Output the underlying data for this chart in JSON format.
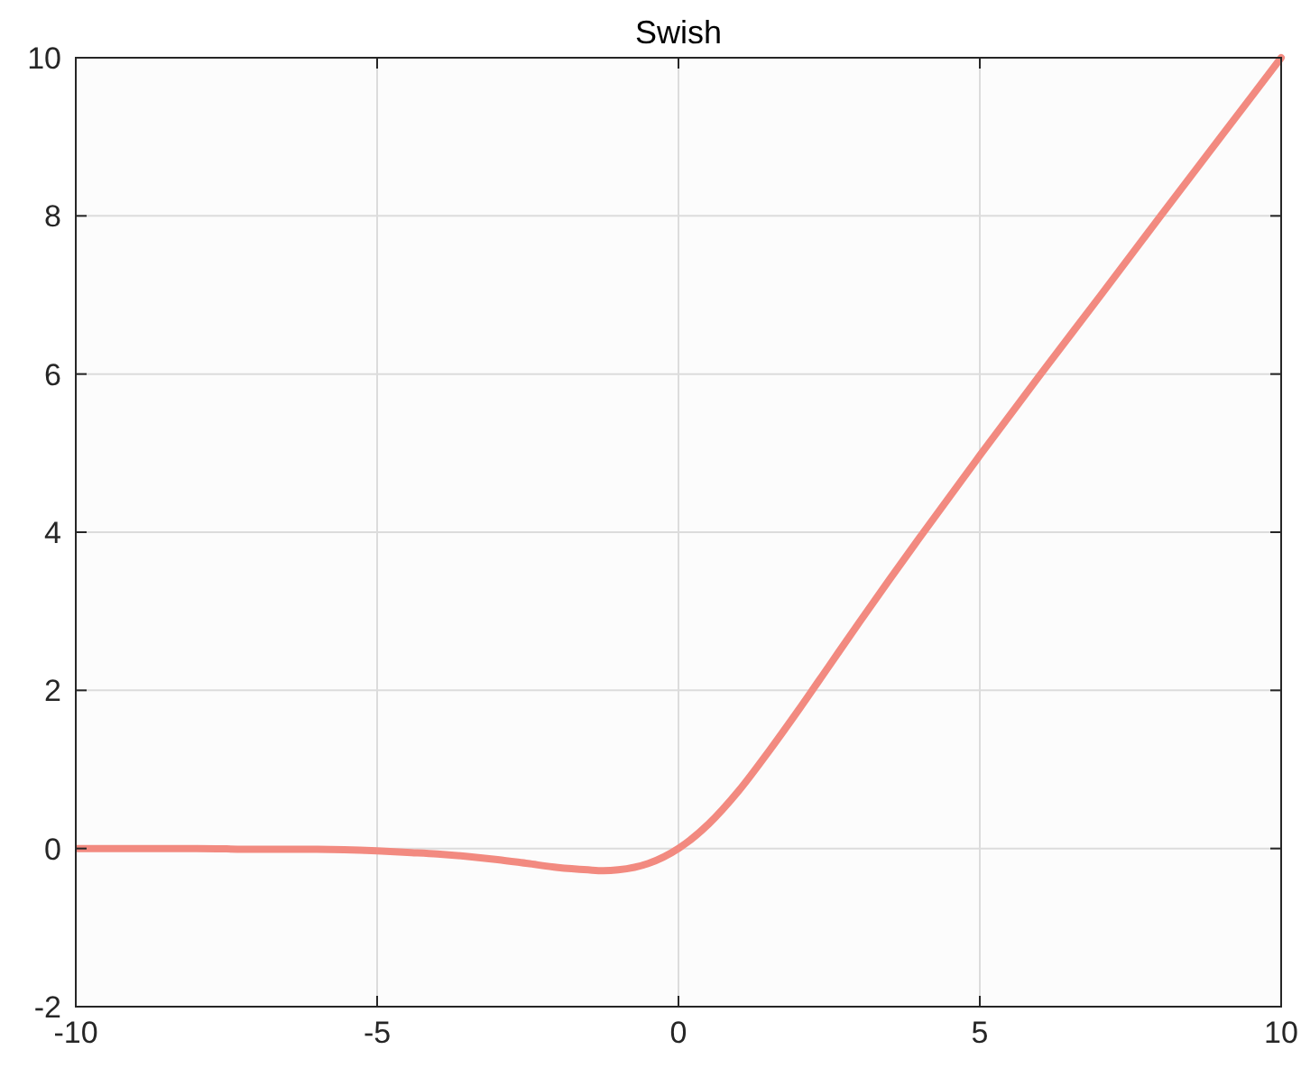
{
  "chart_data": {
    "type": "line",
    "title": "Swish",
    "x": [
      -10,
      -9,
      -8,
      -7,
      -6,
      -5,
      -4.5,
      -4,
      -3.5,
      -3,
      -2.5,
      -2,
      -1.5,
      -1.25,
      -1,
      -0.5,
      0,
      0.5,
      1,
      1.5,
      2,
      2.5,
      3,
      3.5,
      4,
      5,
      6,
      7,
      8,
      9,
      10
    ],
    "series": [
      {
        "color": "#f28a80",
        "values": [
          0,
          0,
          0,
          -0.01,
          -0.01,
          -0.03,
          -0.05,
          -0.07,
          -0.1,
          -0.14,
          -0.19,
          -0.24,
          -0.27,
          -0.28,
          -0.27,
          -0.19,
          0,
          0.31,
          0.73,
          1.23,
          1.76,
          2.31,
          2.86,
          3.4,
          3.93,
          4.97,
          5.99,
          6.99,
          8,
          9,
          10
        ]
      }
    ],
    "xlim": [
      -10,
      10
    ],
    "ylim": [
      -2,
      10
    ],
    "xticks": [
      -10,
      -5,
      0,
      5,
      10
    ],
    "yticks": [
      -2,
      0,
      2,
      4,
      6,
      8,
      10
    ],
    "grid": true,
    "marker": "none",
    "line_style": "solid"
  }
}
